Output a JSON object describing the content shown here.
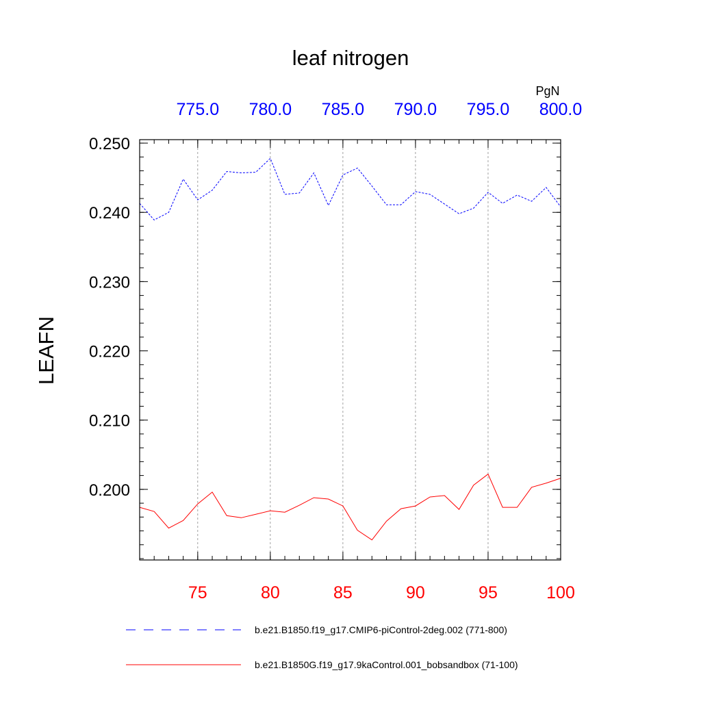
{
  "chart_data": {
    "type": "line",
    "title": "leaf nitrogen",
    "ylabel": "LEAFN",
    "units_label": "PgN",
    "ylim": [
      0.1898,
      0.2505
    ],
    "y_ticks": [
      0.2,
      0.21,
      0.22,
      0.23,
      0.24,
      0.25
    ],
    "y_tick_labels": [
      "0.200",
      "0.210",
      "0.220",
      "0.230",
      "0.240",
      "0.250"
    ],
    "y_minor_step": 0.002,
    "x_bottom": {
      "range": [
        71,
        100
      ],
      "ticks": [
        75,
        80,
        85,
        90,
        95,
        100
      ],
      "tick_labels": [
        "75",
        "80",
        "85",
        "90",
        "95",
        "100"
      ],
      "color": "#ff0000"
    },
    "x_top": {
      "range": [
        771,
        800
      ],
      "ticks": [
        775,
        780,
        785,
        790,
        795,
        800
      ],
      "tick_labels": [
        "775.0",
        "780.0",
        "785.0",
        "790.0",
        "795.0",
        "800.0"
      ],
      "color": "#0000ff"
    },
    "grid_x": true,
    "series": [
      {
        "name": "b.e21.B1850.f19_g17.CMIP6-piControl-2deg.002 (771-800)",
        "axis": "top",
        "color": "#0000ff",
        "style": "dashed",
        "x": [
          771,
          772,
          773,
          774,
          775,
          776,
          777,
          778,
          779,
          780,
          781,
          782,
          783,
          784,
          785,
          786,
          787,
          788,
          789,
          790,
          791,
          792,
          793,
          794,
          795,
          796,
          797,
          798,
          799,
          800
        ],
        "values": [
          0.2413,
          0.2389,
          0.24,
          0.2448,
          0.2418,
          0.2432,
          0.2459,
          0.2457,
          0.2458,
          0.2478,
          0.2426,
          0.2428,
          0.2457,
          0.241,
          0.2454,
          0.2464,
          0.2438,
          0.2411,
          0.2411,
          0.243,
          0.2426,
          0.2412,
          0.2398,
          0.2406,
          0.2429,
          0.2413,
          0.2425,
          0.2416,
          0.2436,
          0.2408
        ]
      },
      {
        "name": "b.e21.B1850G.f19_g17.9kaControl.001_bobsandbox (71-100)",
        "axis": "bottom",
        "color": "#ff0000",
        "style": "solid",
        "x": [
          71,
          72,
          73,
          74,
          75,
          76,
          77,
          78,
          79,
          80,
          81,
          82,
          83,
          84,
          85,
          86,
          87,
          88,
          89,
          90,
          91,
          92,
          93,
          94,
          95,
          96,
          97,
          98,
          99,
          100
        ],
        "values": [
          0.1974,
          0.1968,
          0.1944,
          0.1955,
          0.1979,
          0.1996,
          0.1962,
          0.1959,
          0.1964,
          0.1969,
          0.1967,
          0.1977,
          0.1988,
          0.1986,
          0.1976,
          0.1941,
          0.1927,
          0.1954,
          0.1972,
          0.1976,
          0.1989,
          0.1991,
          0.1971,
          0.2006,
          0.2022,
          0.1974,
          0.1974,
          0.2003,
          0.2009,
          0.2016
        ]
      }
    ],
    "legend_position": "bottom"
  }
}
